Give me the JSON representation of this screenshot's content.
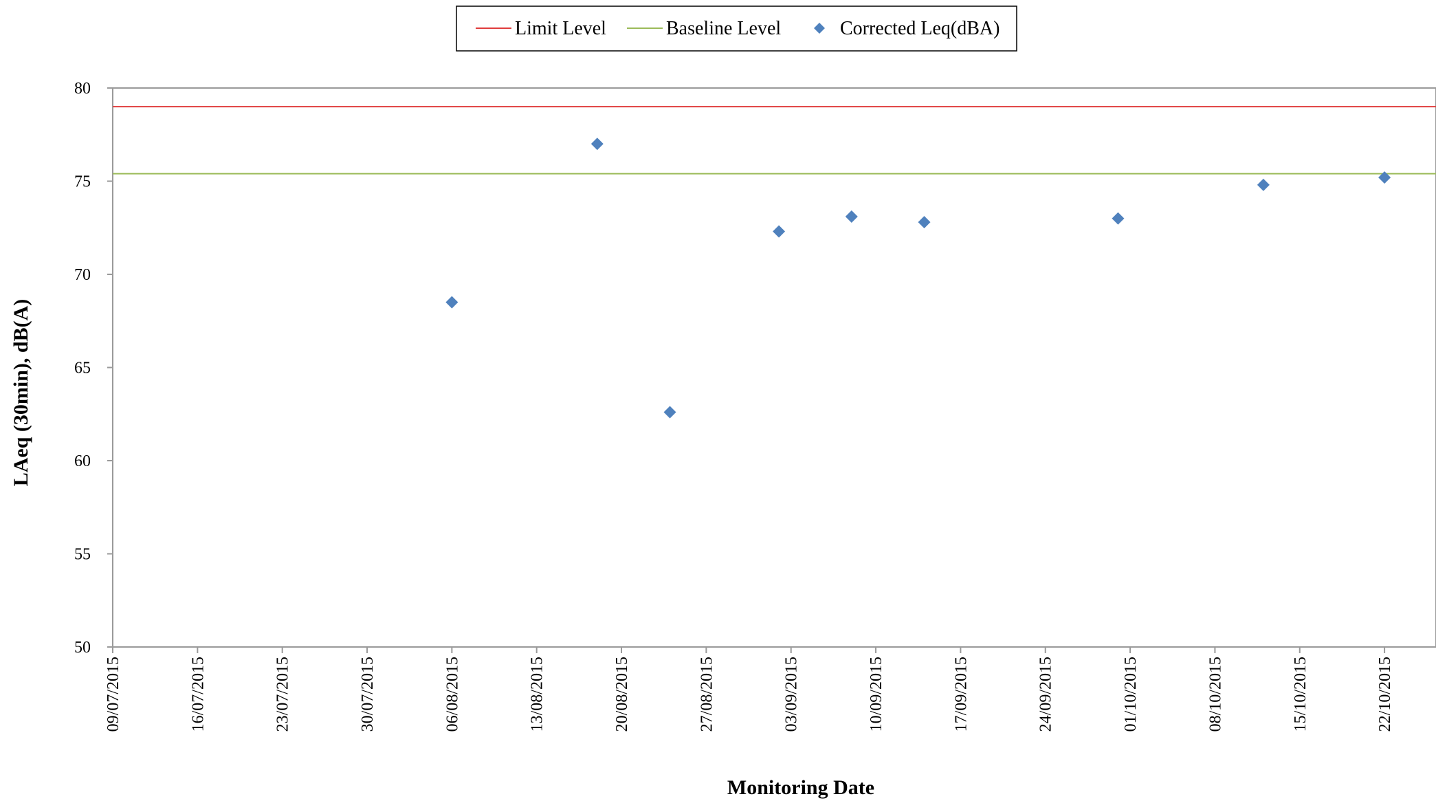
{
  "chart_data": {
    "type": "scatter",
    "xlabel": "Monitoring Date",
    "ylabel": "LAeq (30min), dB(A)",
    "ylim": [
      50,
      80
    ],
    "yticks": [
      50,
      55,
      60,
      65,
      70,
      75,
      80
    ],
    "xlim": [
      "09/07/2015",
      "31/10/2015"
    ],
    "xticks": [
      "09/07/2015",
      "16/07/2015",
      "23/07/2015",
      "30/07/2015",
      "06/08/2015",
      "13/08/2015",
      "20/08/2015",
      "27/08/2015",
      "03/09/2015",
      "10/09/2015",
      "17/09/2015",
      "24/09/2015",
      "01/10/2015",
      "08/10/2015",
      "15/10/2015",
      "22/10/2015"
    ],
    "grid": false,
    "legend_position": "top-center",
    "series": [
      {
        "name": "Limit Level",
        "kind": "line",
        "color": "#e03c3c",
        "y": 79
      },
      {
        "name": "Baseline Level",
        "kind": "line",
        "color": "#9bbb59",
        "y": 75.4
      },
      {
        "name": "Corrected Leq(dBA)",
        "kind": "scatter",
        "color": "#4f81bd",
        "marker": "diamond",
        "points": [
          {
            "x": "06/08/2015",
            "y": 68.5
          },
          {
            "x": "18/08/2015",
            "y": 77.0
          },
          {
            "x": "24/08/2015",
            "y": 62.6
          },
          {
            "x": "02/09/2015",
            "y": 72.3
          },
          {
            "x": "08/09/2015",
            "y": 73.1
          },
          {
            "x": "14/09/2015",
            "y": 72.8
          },
          {
            "x": "30/09/2015",
            "y": 73.0
          },
          {
            "x": "12/10/2015",
            "y": 74.8
          },
          {
            "x": "22/10/2015",
            "y": 75.2
          }
        ]
      }
    ]
  }
}
